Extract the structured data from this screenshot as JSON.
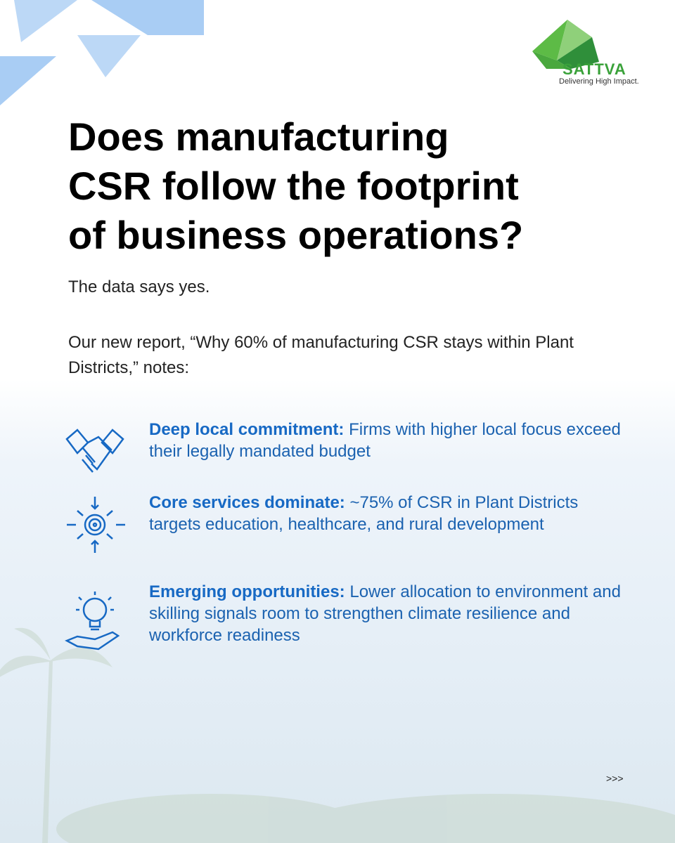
{
  "logo": {
    "name": "SATTVA",
    "tagline": "Delivering High Impact."
  },
  "title_lines": [
    "Does manufacturing",
    "CSR follow the footprint",
    "of business operations?"
  ],
  "intro": "The data says yes.",
  "lead": "Our new report, “Why 60% of manufacturing CSR stays within Plant Districts,” notes:",
  "points": [
    {
      "heading": "Deep local commitment:",
      "text": "Firms with higher local focus exceed their legally mandated budget"
    },
    {
      "heading": "Core services dominate:",
      "text": "~75% of CSR in Plant Districts targets education, healthcare, and rural development"
    },
    {
      "heading": "Emerging opportunities:",
      "text": "Lower allocation to environment and skilling signals room to strengthen climate resilience and workforce readiness"
    }
  ],
  "next": ">>>"
}
